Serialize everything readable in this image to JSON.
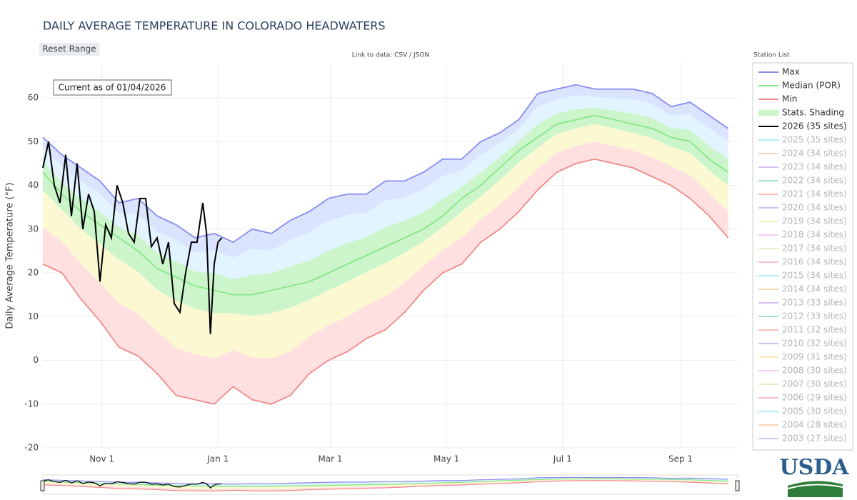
{
  "page": {
    "reset_button": "Reset Range",
    "data_link": "Link to data: CSV / JSON",
    "station_list_title": "Station List",
    "logo": "USDA"
  },
  "chart_data": {
    "type": "line",
    "title": "DAILY AVERAGE TEMPERATURE IN COLORADO HEADWATERS",
    "annotation": "Current as of 01/04/2026",
    "y_label": "Daily Average Temperature (°F)",
    "x": [
      0,
      10,
      20,
      30,
      40,
      50,
      60,
      70,
      80,
      90,
      100,
      110,
      120,
      130,
      140,
      150,
      160,
      170,
      180,
      190,
      200,
      210,
      220,
      230,
      240,
      250,
      260,
      270,
      280,
      290,
      300,
      310,
      320,
      330,
      340,
      350,
      360
    ],
    "xlim": [
      0,
      365
    ],
    "xticks": [
      {
        "value": 31,
        "label": "Nov 1"
      },
      {
        "value": 92,
        "label": "Jan 1"
      },
      {
        "value": 151,
        "label": "Mar 1"
      },
      {
        "value": 212,
        "label": "May 1"
      },
      {
        "value": 273,
        "label": "Jul 1"
      },
      {
        "value": 335,
        "label": "Sep 1"
      }
    ],
    "ylim": [
      -20,
      68
    ],
    "yticks": [
      -20,
      -10,
      0,
      10,
      20,
      30,
      40,
      50,
      60
    ],
    "grid": true,
    "series": [
      {
        "name": "Max",
        "color": "#8a8cf0",
        "values": [
          51,
          47,
          44,
          41,
          36,
          37,
          33,
          31,
          28,
          29,
          27,
          30,
          29,
          32,
          34,
          37,
          38,
          38,
          41,
          41,
          43,
          46,
          46,
          50,
          52,
          55,
          61,
          62,
          63,
          62,
          62,
          62,
          61,
          58,
          59,
          56,
          53
        ]
      },
      {
        "name": "Median (POR)",
        "color": "#86e886",
        "values": [
          43,
          38,
          34,
          31,
          28,
          25,
          21,
          19,
          17,
          16,
          15,
          15,
          16,
          17,
          18,
          20,
          22,
          24,
          26,
          28,
          30,
          33,
          37,
          40,
          44,
          48,
          51,
          54,
          55,
          56,
          55,
          54,
          53,
          51,
          50,
          46,
          43
        ]
      },
      {
        "name": "Min",
        "color": "#f08a8a",
        "values": [
          22,
          20,
          14,
          9,
          3,
          1,
          -3,
          -8,
          -9,
          -10,
          -6,
          -9,
          -10,
          -8,
          -3,
          0,
          2,
          5,
          7,
          11,
          16,
          20,
          22,
          27,
          30,
          34,
          39,
          43,
          45,
          46,
          45,
          44,
          42,
          40,
          37,
          33,
          28
        ]
      },
      {
        "name": "Stats. Shading",
        "color": "#ccf5cc"
      },
      {
        "name": "2026 (35 sites)",
        "color": "#000000",
        "x": [
          0,
          3,
          6,
          9,
          12,
          15,
          18,
          21,
          24,
          27,
          30,
          33,
          36,
          39,
          42,
          45,
          48,
          51,
          54,
          57,
          60,
          63,
          66,
          69,
          72,
          75,
          78,
          81,
          84,
          86,
          88,
          90,
          92,
          94
        ],
        "values": [
          44,
          50,
          40,
          36,
          47,
          33,
          45,
          30,
          38,
          34,
          18,
          31,
          28,
          40,
          36,
          29,
          27,
          37,
          37,
          26,
          28,
          22,
          27,
          13,
          11,
          20,
          27,
          27,
          36,
          29,
          6,
          22,
          27,
          28
        ]
      }
    ],
    "legend_only": [
      {
        "name": "2025 (35 sites)",
        "color": "#8ee6e6"
      },
      {
        "name": "2024 (34 sites)",
        "color": "#f9c79a"
      },
      {
        "name": "2023 (34 sites)",
        "color": "#c8aaf2"
      },
      {
        "name": "2022 (34 sites)",
        "color": "#7fd8ae"
      },
      {
        "name": "2021 (34 sites)",
        "color": "#f2a898"
      },
      {
        "name": "2020 (34 sites)",
        "color": "#a8aef2"
      },
      {
        "name": "2019 (34 sites)",
        "color": "#f8e39c"
      },
      {
        "name": "2018 (34 sites)",
        "color": "#f8b8f2"
      },
      {
        "name": "2017 (34 sites)",
        "color": "#dbe9aa"
      },
      {
        "name": "2016 (34 sites)",
        "color": "#f8aab4"
      },
      {
        "name": "2015 (34 sites)",
        "color": "#8ee6e6"
      },
      {
        "name": "2014 (34 sites)",
        "color": "#f9c79a"
      },
      {
        "name": "2013 (33 sites)",
        "color": "#c8aaf2"
      },
      {
        "name": "2012 (33 sites)",
        "color": "#7fd8ae"
      },
      {
        "name": "2011 (32 sites)",
        "color": "#f2a898"
      },
      {
        "name": "2010 (32 sites)",
        "color": "#a8aef2"
      },
      {
        "name": "2009 (31 sites)",
        "color": "#f8e39c"
      },
      {
        "name": "2008 (30 sites)",
        "color": "#f8b8f2"
      },
      {
        "name": "2007 (30 sites)",
        "color": "#dbe9aa"
      },
      {
        "name": "2006 (29 sites)",
        "color": "#f8aab4"
      },
      {
        "name": "2005 (30 sites)",
        "color": "#8ee6f2"
      },
      {
        "name": "2004 (28 sites)",
        "color": "#f9c79a"
      },
      {
        "name": "2003 (27 sites)",
        "color": "#c8aaf2"
      }
    ]
  }
}
